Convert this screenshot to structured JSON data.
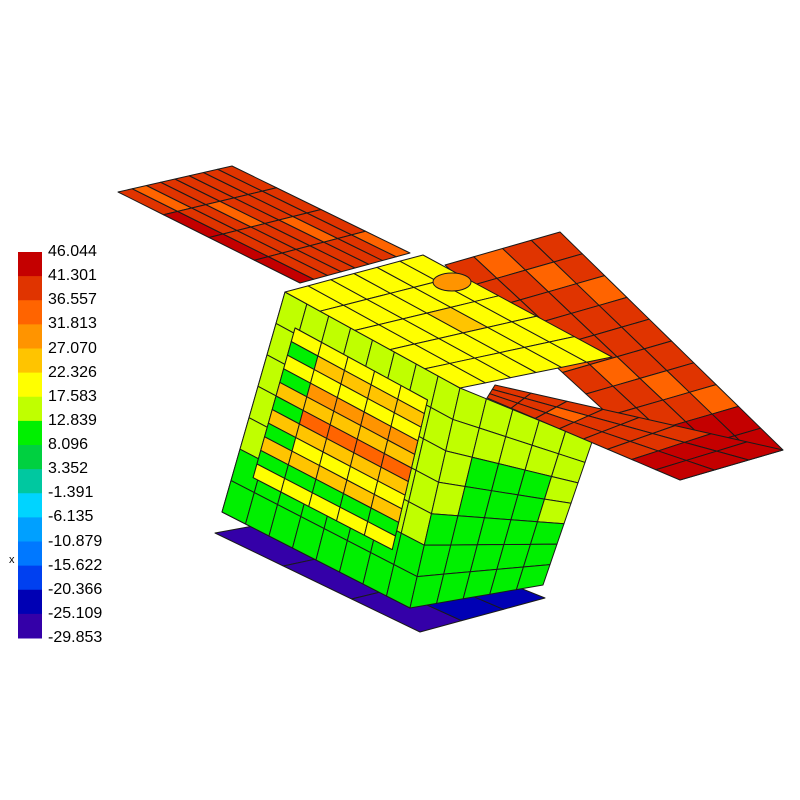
{
  "legend": {
    "labels": [
      "46.044",
      "41.301",
      "36.557",
      "31.813",
      "27.070",
      "22.326",
      "17.583",
      "12.839",
      "8.096",
      "3.352",
      "-1.391",
      "-6.135",
      "-10.879",
      "-15.622",
      "-20.366",
      "-25.109",
      "-29.853"
    ],
    "colors": [
      "#c40000",
      "#e03400",
      "#ff6400",
      "#ff9400",
      "#ffc400",
      "#ffff00",
      "#c0ff00",
      "#00f000",
      "#00d040",
      "#00c8a0",
      "#00d4ff",
      "#00a0ff",
      "#0078ff",
      "#0040f0",
      "#0000b4",
      "#3400a8"
    ]
  },
  "axis_label": "x"
}
